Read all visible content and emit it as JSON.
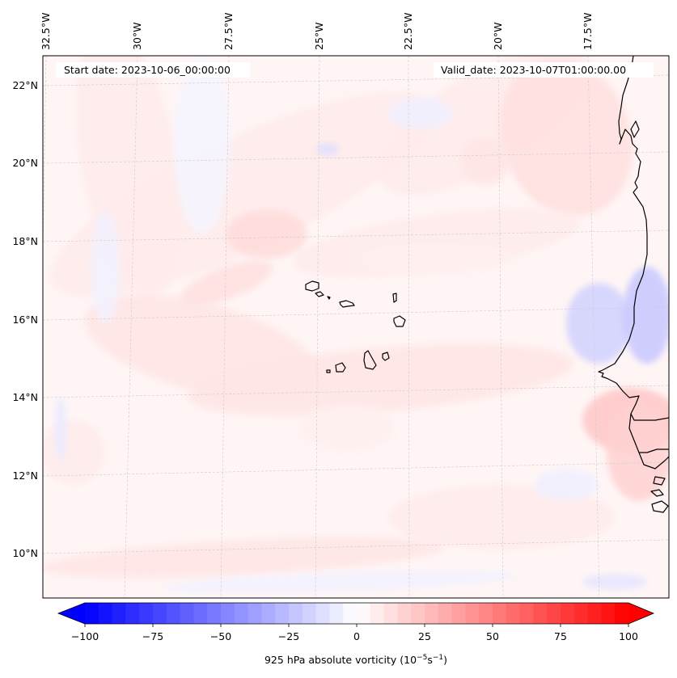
{
  "chart_data": {
    "type": "heatmap",
    "title": "",
    "variable": "925 hPa absolute vorticity",
    "units_prefix": "10",
    "units_exp1": "−5",
    "units_mid": "s",
    "units_exp2": "−1",
    "colorbar_label_main": "925 hPa absolute vorticity (10",
    "colormap": "bwr",
    "colorbar_range": [
      -100,
      100
    ],
    "colorbar_levels_step": 5,
    "colorbar_extend": "both",
    "colorbar_ticks": [
      -100,
      -75,
      -50,
      -25,
      0,
      25,
      50,
      75,
      100
    ],
    "colorbar_tick_labels": [
      "−100",
      "−75",
      "−50",
      "−25",
      "0",
      "25",
      "50",
      "75",
      "100"
    ],
    "lon_range_deg": [
      -33.0,
      -15.5
    ],
    "lat_range_deg": [
      8.8,
      22.8
    ],
    "lon_ticks": [
      -32.5,
      -30,
      -27.5,
      -25,
      -22.5,
      -20,
      -17.5
    ],
    "lon_tick_labels": [
      "32.5°W",
      "30°W",
      "27.5°W",
      "25°W",
      "22.5°W",
      "20°W",
      "17.5°W"
    ],
    "lat_ticks": [
      22,
      20,
      18,
      16,
      14,
      12,
      10
    ],
    "lat_tick_labels": [
      "22°N",
      "20°N",
      "18°N",
      "16°N",
      "14°N",
      "12°N",
      "10°N"
    ],
    "gridlines": true,
    "features": [
      "Cape Verde Islands",
      "West African coastline (Mauritania, Senegal, Guinea-Bissau)"
    ],
    "field_summary": "Mostly weak positive vorticity (0–15) over the ocean with small weak negative patches (−5 to −15); stronger positive (~20) near Senegal/Guinea-Bissau coast, negative (~−20) patch near 15–16°N coast"
  },
  "annotations": {
    "start_date": "Start date: 2023-10-06_00:00:00",
    "valid_date": "Valid_date: 2023-10-07T01:00:00.00"
  },
  "colors": {
    "negative_max": "#0000ff",
    "neutral": "#ffffff",
    "positive_max": "#ff0000",
    "coastline": "#000000",
    "gridline": "#cccccc"
  }
}
